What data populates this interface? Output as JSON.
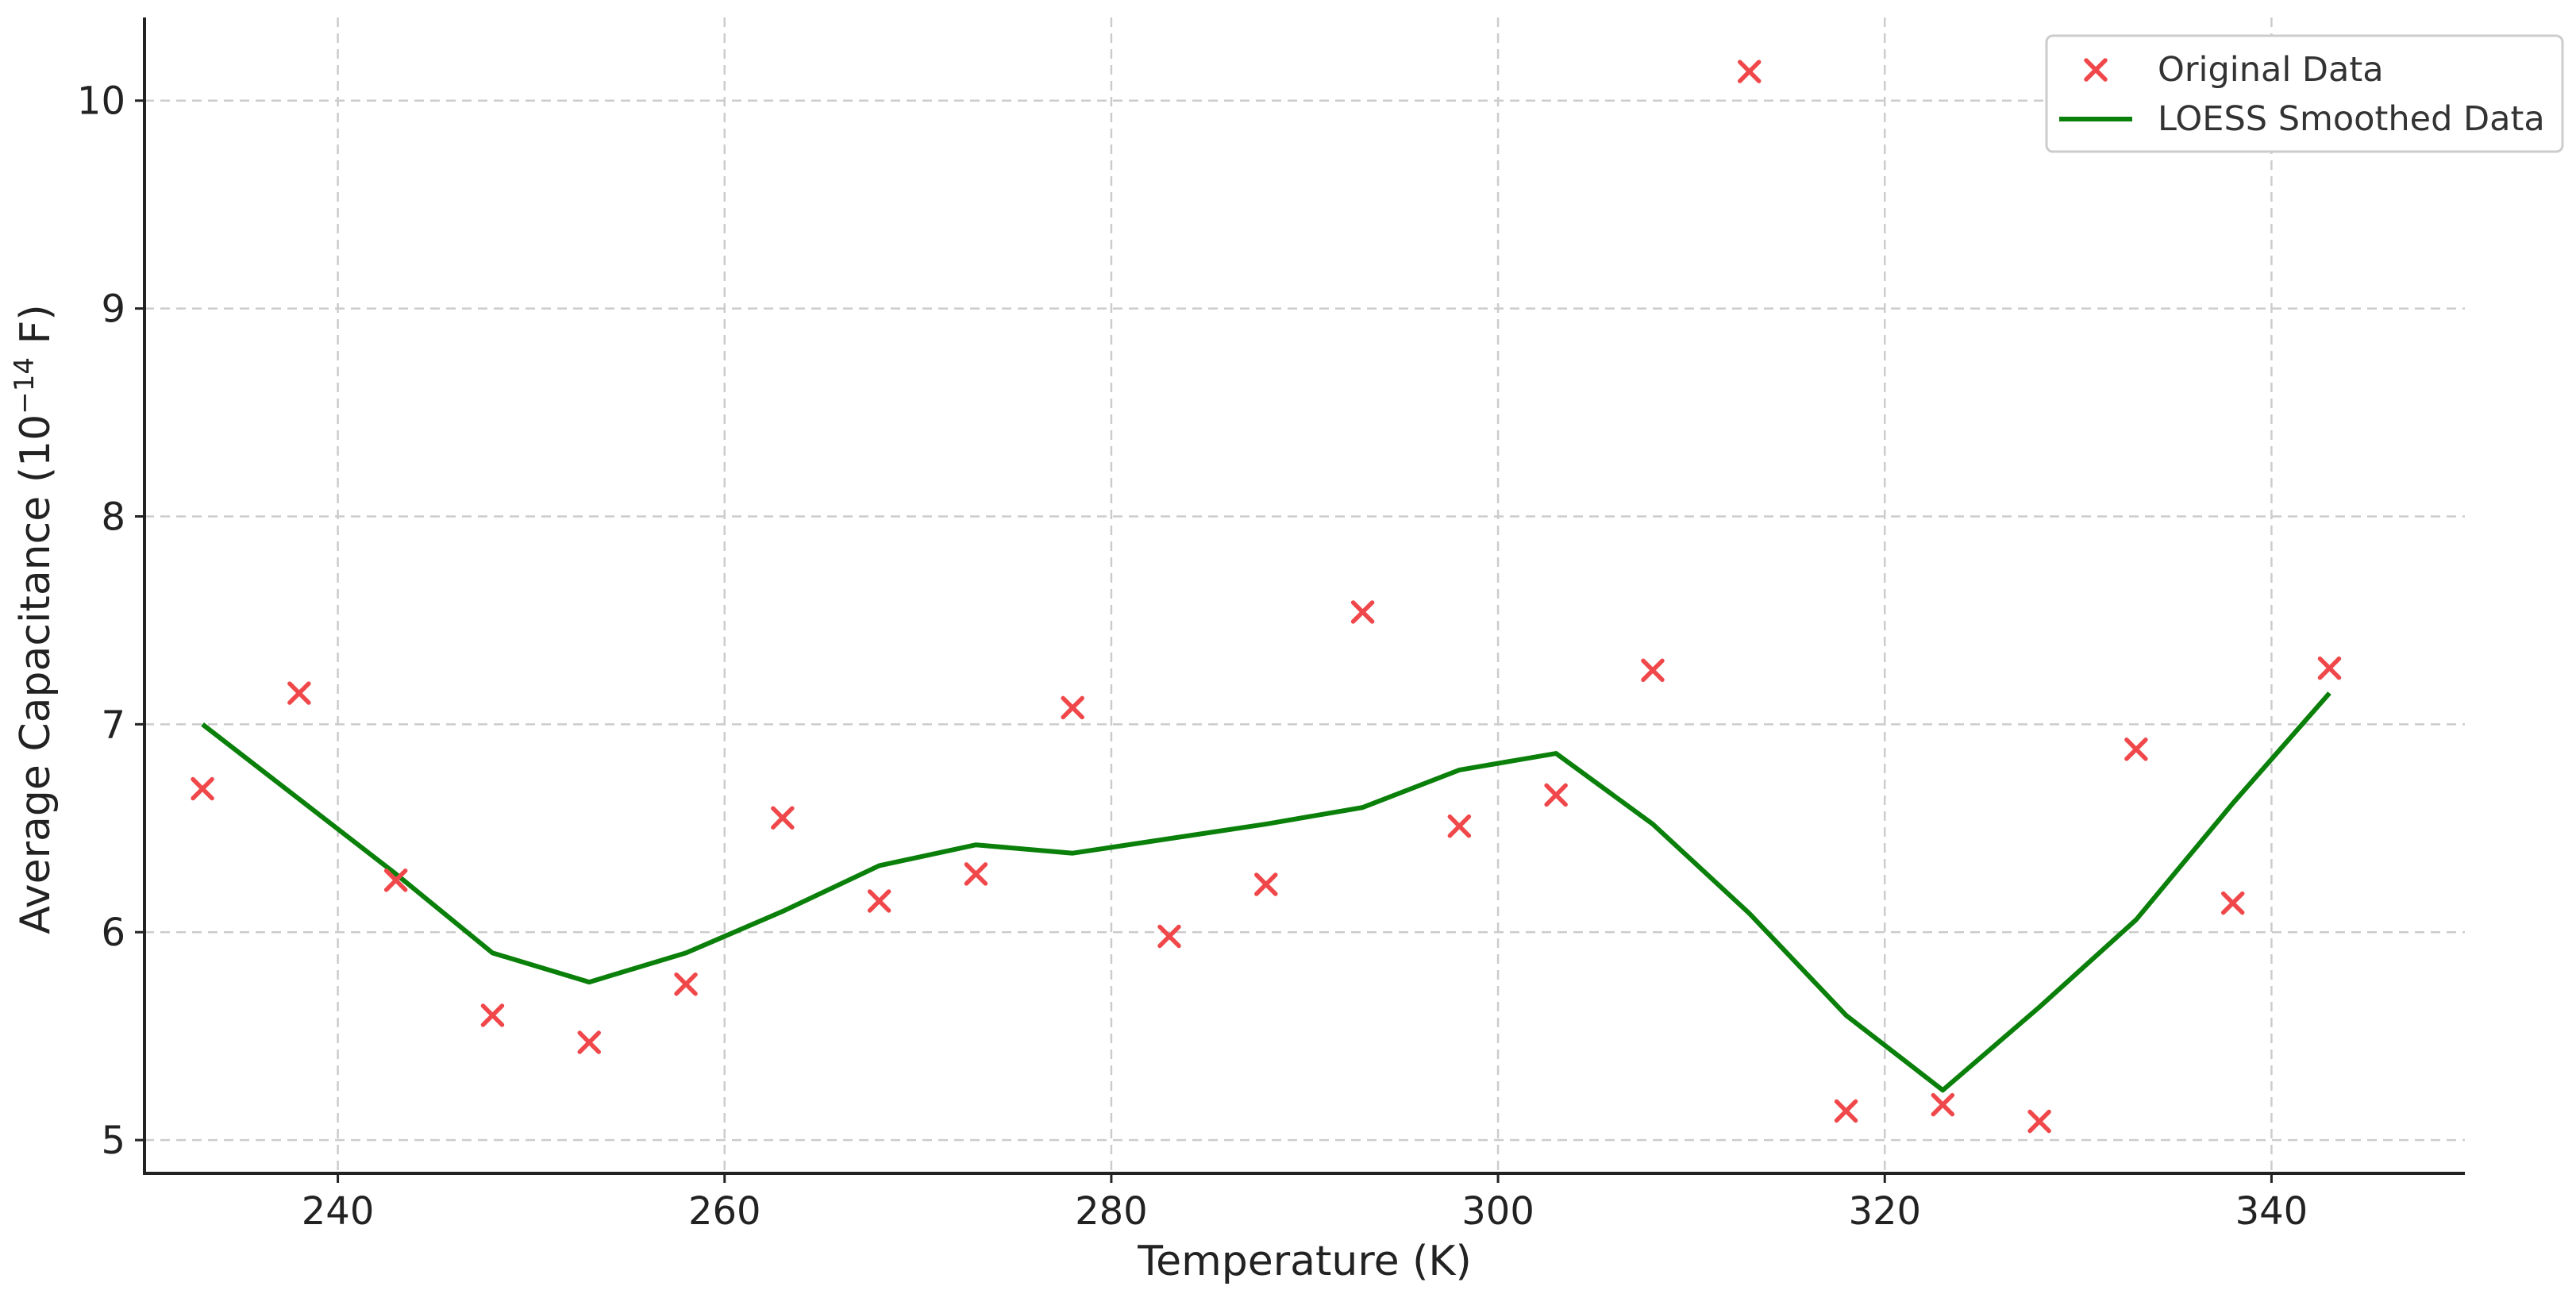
{
  "chart_data": {
    "type": "scatter",
    "xlabel": "Temperature (K)",
    "ylabel_main": "Average Capacitance (10",
    "ylabel_sup": "−14",
    "ylabel_end": " F)",
    "xlim": [
      230,
      350
    ],
    "ylim": [
      4.84,
      10.4
    ],
    "x_ticks": [
      240,
      260,
      280,
      300,
      320,
      340
    ],
    "y_ticks": [
      5,
      6,
      7,
      8,
      9,
      10
    ],
    "grid": true,
    "legend_position": "top-right",
    "series": [
      {
        "name": "Original Data",
        "style": "marker-x",
        "color": "#f0484a",
        "x": [
          233,
          238,
          243,
          248,
          253,
          258,
          263,
          268,
          273,
          278,
          283,
          288,
          293,
          298,
          303,
          308,
          313,
          318,
          323,
          328,
          333,
          338,
          343
        ],
        "y": [
          6.69,
          7.15,
          6.25,
          5.6,
          5.47,
          5.75,
          6.55,
          6.15,
          6.28,
          7.08,
          5.98,
          6.23,
          7.54,
          6.51,
          6.66,
          7.26,
          10.14,
          5.14,
          5.17,
          5.09,
          6.88,
          6.14,
          7.27
        ]
      },
      {
        "name": "LOESS Smoothed Data",
        "style": "line",
        "color": "#0a800a",
        "x": [
          233,
          238,
          243,
          248,
          253,
          258,
          263,
          268,
          273,
          278,
          283,
          288,
          293,
          298,
          303,
          308,
          313,
          318,
          323,
          328,
          333,
          338,
          343
        ],
        "y": [
          7.0,
          6.64,
          6.28,
          5.9,
          5.76,
          5.9,
          6.1,
          6.32,
          6.42,
          6.38,
          6.45,
          6.52,
          6.6,
          6.78,
          6.86,
          6.52,
          6.09,
          5.6,
          5.24,
          5.64,
          6.06,
          6.62,
          7.15
        ]
      }
    ]
  }
}
